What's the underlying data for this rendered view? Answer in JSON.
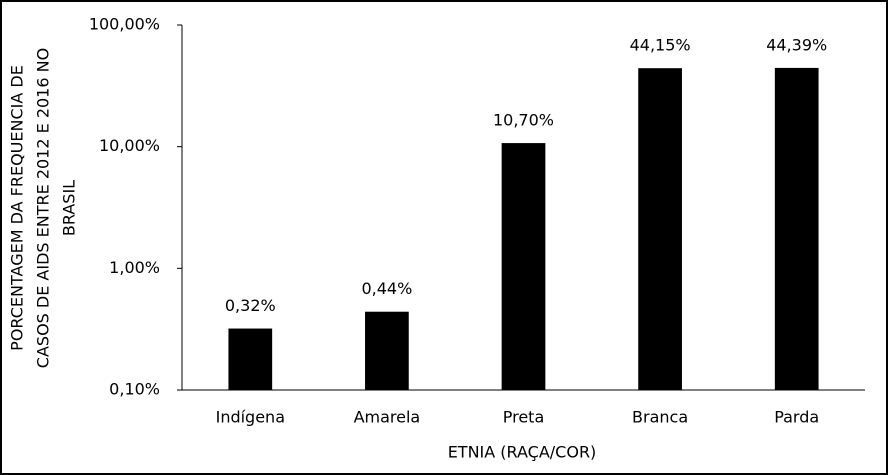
{
  "chart_data": {
    "type": "bar",
    "log_scale": true,
    "y_label": [
      "PORCENTAGEM DA FREQUENCIA DE",
      "CASOS DE AIDS ENTRE 2012 E 2016 NO",
      "BRASIL"
    ],
    "x_label": "ETNIA (RAÇA/COR)",
    "categories": [
      "Indígena",
      "Amarela",
      "Preta",
      "Branca",
      "Parda"
    ],
    "values": [
      0.32,
      0.44,
      10.7,
      44.15,
      44.39
    ],
    "value_labels": [
      "0,32%",
      "0,44%",
      "10,70%",
      "44,15%",
      "44,39%"
    ],
    "color": "#000000",
    "ylim": [
      0.1,
      100
    ],
    "yticks": [
      {
        "value": 0.1,
        "label": "0,10%"
      },
      {
        "value": 1,
        "label": "1,00%"
      },
      {
        "value": 10,
        "label": "10,00%"
      },
      {
        "value": 100,
        "label": "100,00%"
      }
    ],
    "grid": false
  }
}
